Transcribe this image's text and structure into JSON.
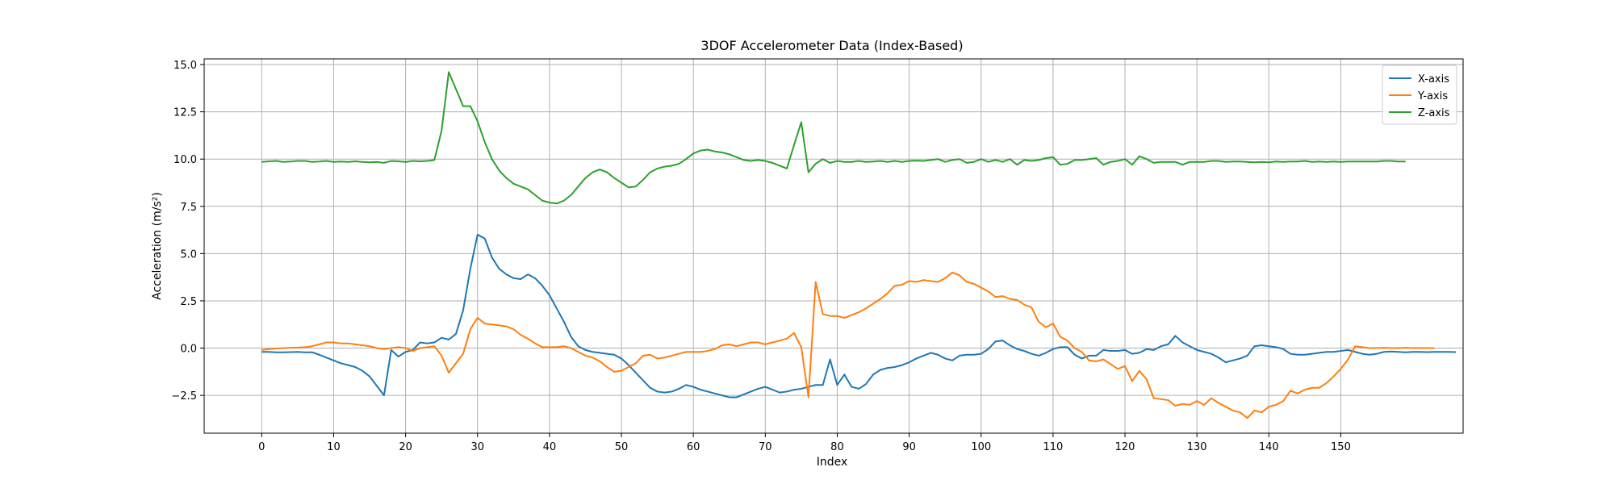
{
  "chart_data": {
    "type": "line",
    "title": "3DOF Accelerometer Data (Index-Based)",
    "xlabel": "Index",
    "ylabel": "Acceleration (m/s²)",
    "xlim": [
      -8,
      167
    ],
    "ylim": [
      -4.5,
      15.3
    ],
    "xticks": [
      0,
      10,
      20,
      30,
      40,
      50,
      60,
      70,
      80,
      90,
      100,
      110,
      120,
      130,
      140,
      150
    ],
    "yticks": [
      -2.5,
      0.0,
      2.5,
      5.0,
      7.5,
      10.0,
      12.5,
      15.0
    ],
    "ytick_labels": [
      "−2.5",
      "0.0",
      "2.5",
      "5.0",
      "7.5",
      "10.0",
      "12.5",
      "15.0"
    ],
    "grid": true,
    "legend_position": "top-right",
    "series": [
      {
        "name": "X-axis",
        "color": "#1f77b4",
        "values": [
          -0.2,
          -0.2,
          -0.22,
          -0.22,
          -0.21,
          -0.2,
          -0.22,
          -0.22,
          -0.35,
          -0.5,
          -0.65,
          -0.8,
          -0.9,
          -1.0,
          -1.2,
          -1.5,
          -2.0,
          -2.5,
          -0.1,
          -0.45,
          -0.2,
          -0.1,
          0.3,
          0.25,
          0.3,
          0.55,
          0.45,
          0.75,
          2.0,
          4.2,
          6.0,
          5.8,
          4.8,
          4.2,
          3.9,
          3.7,
          3.65,
          3.9,
          3.7,
          3.3,
          2.8,
          2.1,
          1.4,
          0.6,
          0.1,
          -0.1,
          -0.2,
          -0.25,
          -0.3,
          -0.35,
          -0.55,
          -0.9,
          -1.3,
          -1.7,
          -2.1,
          -2.3,
          -2.35,
          -2.3,
          -2.15,
          -1.95,
          -2.05,
          -2.2,
          -2.3,
          -2.4,
          -2.5,
          -2.6,
          -2.6,
          -2.45,
          -2.3,
          -2.15,
          -2.05,
          -2.2,
          -2.35,
          -2.3,
          -2.2,
          -2.15,
          -2.05,
          -1.95,
          -1.95,
          -0.6,
          -1.95,
          -1.4,
          -2.05,
          -2.15,
          -1.9,
          -1.4,
          -1.15,
          -1.05,
          -1.0,
          -0.9,
          -0.75,
          -0.55,
          -0.4,
          -0.25,
          -0.35,
          -0.55,
          -0.65,
          -0.4,
          -0.35,
          -0.35,
          -0.3,
          -0.05,
          0.35,
          0.4,
          0.15,
          -0.05,
          -0.15,
          -0.3,
          -0.4,
          -0.25,
          -0.05,
          0.05,
          0.05,
          -0.35,
          -0.55,
          -0.4,
          -0.4,
          -0.1,
          -0.15,
          -0.15,
          -0.1,
          -0.3,
          -0.25,
          -0.05,
          -0.1,
          0.1,
          0.2,
          0.65,
          0.3,
          0.1,
          -0.1,
          -0.2,
          -0.3,
          -0.5,
          -0.75,
          -0.65,
          -0.55,
          -0.4,
          0.1,
          0.15,
          0.1,
          0.05,
          -0.05,
          -0.3,
          -0.35,
          -0.35,
          -0.3,
          -0.25,
          -0.2,
          -0.2,
          -0.15,
          -0.1,
          -0.2,
          -0.3,
          -0.35,
          -0.3,
          -0.2,
          -0.18,
          -0.2,
          -0.22,
          -0.2,
          -0.2,
          -0.21,
          -0.2,
          -0.2,
          -0.2,
          -0.21
        ]
      },
      {
        "name": "Y-axis",
        "color": "#ff7f0e",
        "values": [
          -0.1,
          -0.05,
          -0.02,
          0.0,
          0.02,
          0.03,
          0.05,
          0.1,
          0.2,
          0.3,
          0.3,
          0.25,
          0.25,
          0.2,
          0.15,
          0.1,
          0.0,
          -0.05,
          0.0,
          0.05,
          0.0,
          -0.15,
          0.0,
          0.05,
          0.1,
          -0.4,
          -1.3,
          -0.8,
          -0.3,
          1.0,
          1.6,
          1.3,
          1.25,
          1.2,
          1.15,
          1.0,
          0.7,
          0.5,
          0.25,
          0.05,
          0.05,
          0.05,
          0.1,
          0.0,
          -0.2,
          -0.4,
          -0.5,
          -0.7,
          -1.0,
          -1.25,
          -1.2,
          -1.0,
          -0.8,
          -0.4,
          -0.35,
          -0.55,
          -0.5,
          -0.4,
          -0.3,
          -0.2,
          -0.2,
          -0.2,
          -0.15,
          -0.05,
          0.15,
          0.2,
          0.1,
          0.2,
          0.3,
          0.3,
          0.2,
          0.3,
          0.4,
          0.5,
          0.8,
          0.05,
          -2.6,
          3.5,
          1.8,
          1.7,
          1.7,
          1.6,
          1.75,
          1.9,
          2.1,
          2.35,
          2.6,
          2.9,
          3.3,
          3.35,
          3.55,
          3.5,
          3.6,
          3.55,
          3.5,
          3.7,
          4.0,
          3.85,
          3.5,
          3.4,
          3.2,
          3.0,
          2.7,
          2.75,
          2.6,
          2.55,
          2.3,
          2.15,
          1.4,
          1.1,
          1.3,
          0.6,
          0.4,
          0.0,
          -0.2,
          -0.65,
          -0.7,
          -0.6,
          -0.85,
          -1.1,
          -0.95,
          -1.75,
          -1.2,
          -1.65,
          -2.65,
          -2.7,
          -2.75,
          -3.05,
          -2.95,
          -3.0,
          -2.8,
          -3.0,
          -2.65,
          -2.9,
          -3.1,
          -3.3,
          -3.4,
          -3.7,
          -3.3,
          -3.4,
          -3.1,
          -3.0,
          -2.8,
          -2.25,
          -2.4,
          -2.2,
          -2.1,
          -2.1,
          -1.85,
          -1.5,
          -1.1,
          -0.6,
          0.1,
          0.05,
          0.0,
          0.0,
          0.02,
          0.0,
          0.0,
          0.02,
          0.0,
          0.0,
          0.0,
          0.0
        ]
      },
      {
        "name": "Z-axis",
        "color": "#2ca02c",
        "values": [
          9.85,
          9.88,
          9.9,
          9.85,
          9.87,
          9.9,
          9.9,
          9.85,
          9.87,
          9.9,
          9.85,
          9.87,
          9.85,
          9.88,
          9.85,
          9.83,
          9.85,
          9.8,
          9.9,
          9.88,
          9.85,
          9.9,
          9.88,
          9.9,
          9.95,
          11.5,
          14.6,
          13.7,
          12.8,
          12.8,
          12.0,
          10.9,
          10.0,
          9.4,
          9.0,
          8.7,
          8.55,
          8.4,
          8.1,
          7.8,
          7.7,
          7.65,
          7.8,
          8.1,
          8.55,
          9.0,
          9.3,
          9.45,
          9.3,
          9.0,
          8.75,
          8.5,
          8.55,
          8.9,
          9.3,
          9.5,
          9.6,
          9.65,
          9.75,
          10.0,
          10.3,
          10.45,
          10.5,
          10.4,
          10.35,
          10.25,
          10.1,
          9.95,
          9.9,
          9.95,
          9.9,
          9.8,
          9.65,
          9.5,
          10.75,
          11.95,
          9.3,
          9.75,
          10.0,
          9.8,
          9.9,
          9.85,
          9.85,
          9.9,
          9.85,
          9.87,
          9.9,
          9.85,
          9.9,
          9.85,
          9.9,
          9.92,
          9.9,
          9.95,
          10.0,
          9.85,
          9.95,
          10.0,
          9.8,
          9.85,
          10.0,
          9.85,
          9.95,
          9.85,
          10.0,
          9.7,
          9.95,
          9.9,
          9.95,
          10.05,
          10.1,
          9.7,
          9.75,
          9.95,
          9.95,
          10.0,
          10.05,
          9.7,
          9.85,
          9.9,
          10.0,
          9.7,
          10.15,
          10.0,
          9.8,
          9.85,
          9.85,
          9.85,
          9.7,
          9.85,
          9.85,
          9.85,
          9.9,
          9.9,
          9.85,
          9.87,
          9.87,
          9.85,
          9.83,
          9.85,
          9.83,
          9.87,
          9.85,
          9.87,
          9.87,
          9.9,
          9.85,
          9.87,
          9.85,
          9.87,
          9.85,
          9.87,
          9.87,
          9.87,
          9.87,
          9.87,
          9.9,
          9.9,
          9.87,
          9.87
        ]
      }
    ]
  }
}
